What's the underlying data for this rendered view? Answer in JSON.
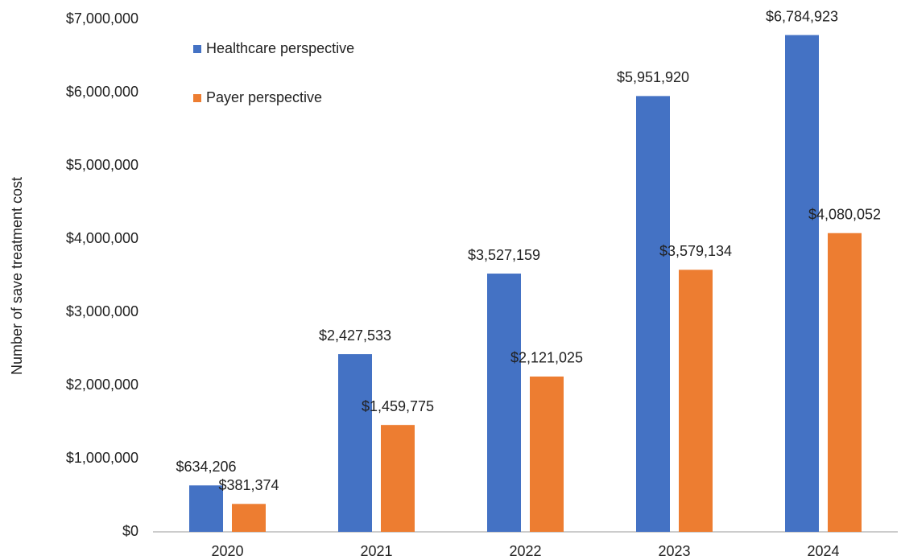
{
  "chart_data": {
    "type": "bar",
    "y_label": "Number of save treatment cost",
    "categories": [
      "2020",
      "2021",
      "2022",
      "2023",
      "2024"
    ],
    "series": [
      {
        "name": "Healthcare perspective",
        "color": "#4472c4",
        "values": [
          634206,
          2427533,
          3527159,
          5951920,
          6784923
        ],
        "value_labels": [
          "$634,206",
          "$2,427,533",
          "$3,527,159",
          "$5,951,920",
          "$6,784,923"
        ]
      },
      {
        "name": "Payer perspective",
        "color": "#ed7d31",
        "values": [
          381374,
          1459775,
          2121025,
          3579134,
          4080052
        ],
        "value_labels": [
          "$381,374",
          "$1,459,775",
          "$2,121,025",
          "$3,579,134",
          "$4,080,052"
        ]
      }
    ],
    "ylim": [
      0,
      7000000
    ],
    "yticks": [
      {
        "value": 0,
        "label": "$0"
      },
      {
        "value": 1000000,
        "label": "$1,000,000"
      },
      {
        "value": 2000000,
        "label": "$2,000,000"
      },
      {
        "value": 3000000,
        "label": "$3,000,000"
      },
      {
        "value": 4000000,
        "label": "$4,000,000"
      },
      {
        "value": 5000000,
        "label": "$5,000,000"
      },
      {
        "value": 6000000,
        "label": "$6,000,000"
      },
      {
        "value": 7000000,
        "label": "$7,000,000"
      }
    ],
    "grid": false,
    "legend": "top-left"
  }
}
